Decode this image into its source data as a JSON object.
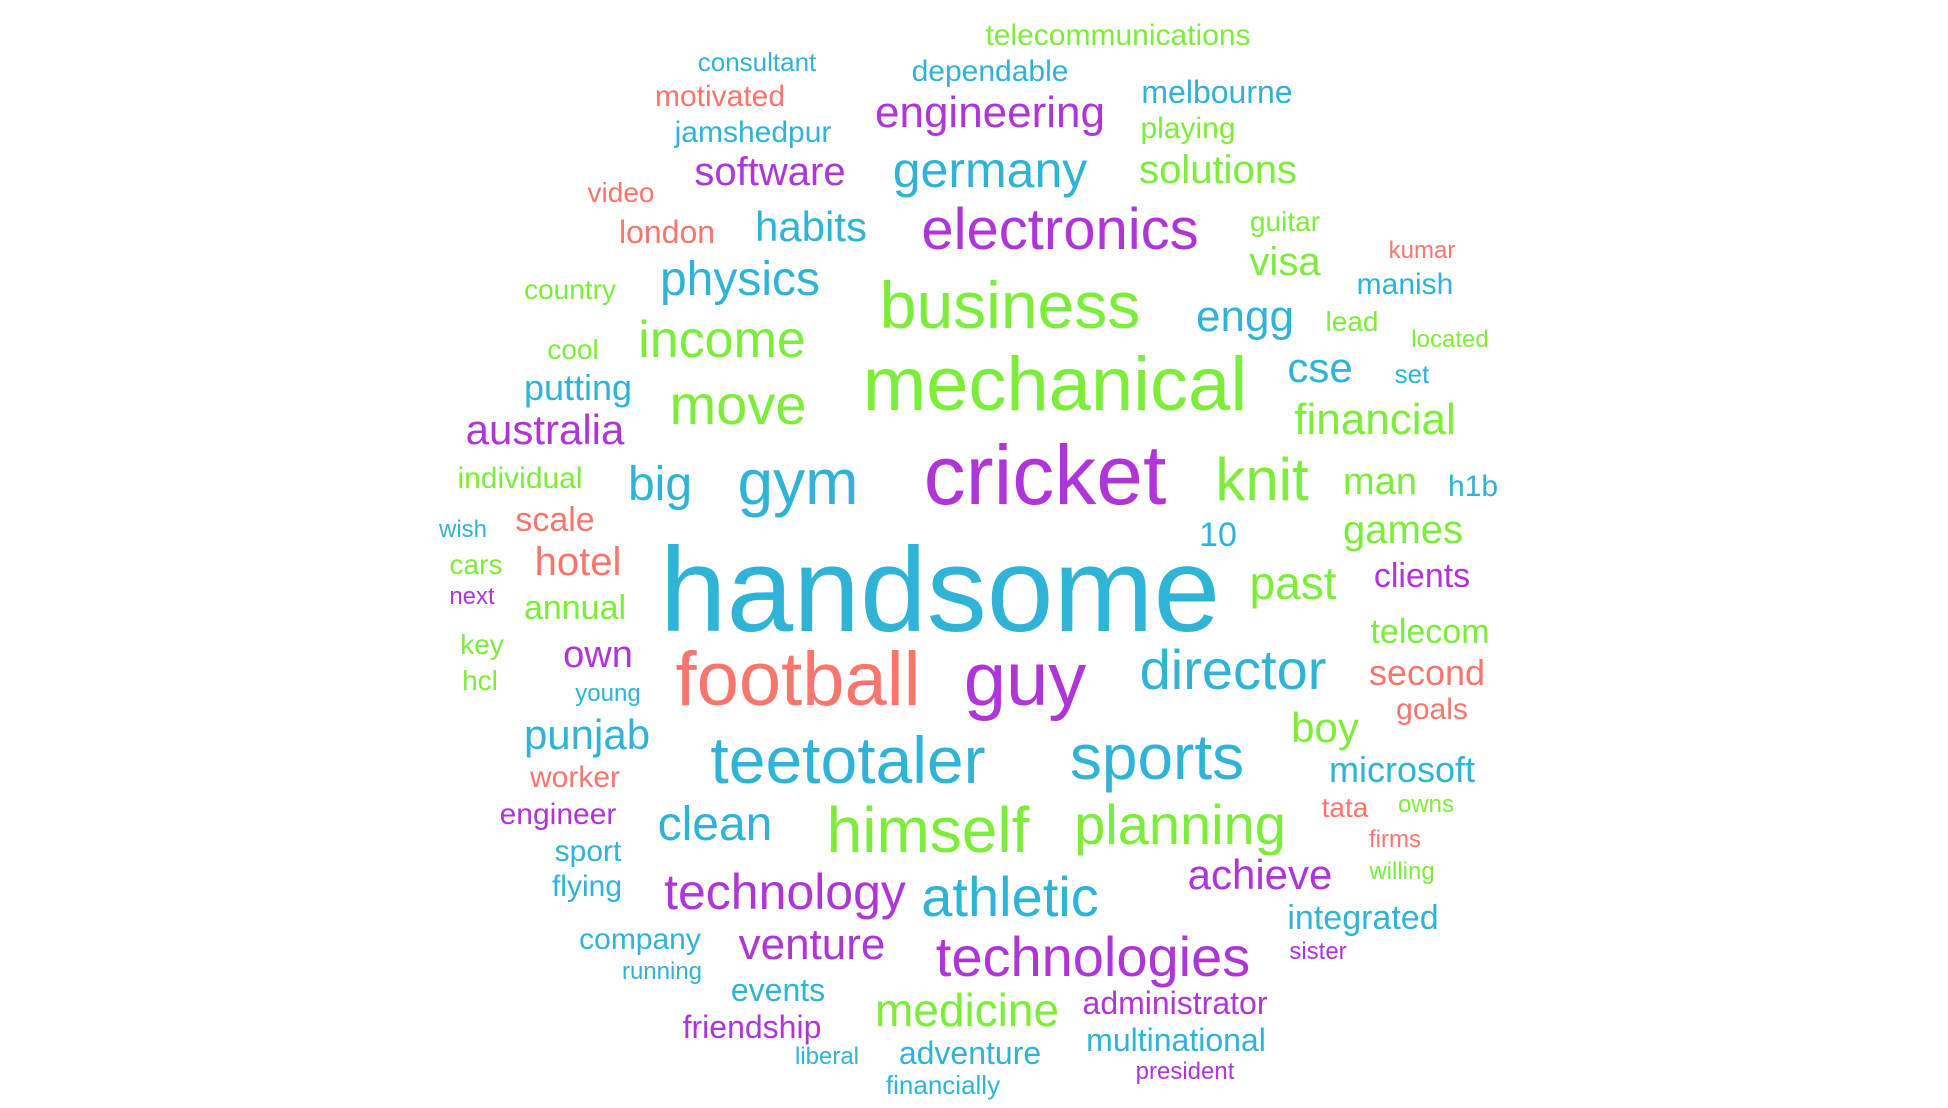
{
  "palette": {
    "red": "#f8766d",
    "green": "#7cee3a",
    "blue": "#2fb3d6",
    "purple": "#b035d8"
  },
  "words": [
    {
      "text": "handsome",
      "color": "blue"
    },
    {
      "text": "cricket",
      "color": "purple"
    },
    {
      "text": "football",
      "color": "red"
    },
    {
      "text": "guy",
      "color": "purple"
    },
    {
      "text": "mechanical",
      "color": "green"
    },
    {
      "text": "business",
      "color": "green"
    },
    {
      "text": "teetotaler",
      "color": "blue"
    },
    {
      "text": "himself",
      "color": "green"
    },
    {
      "text": "sports",
      "color": "blue"
    },
    {
      "text": "gym",
      "color": "blue"
    },
    {
      "text": "director",
      "color": "blue"
    },
    {
      "text": "electronics",
      "color": "purple"
    },
    {
      "text": "planning",
      "color": "green"
    },
    {
      "text": "technologies",
      "color": "purple"
    },
    {
      "text": "athletic",
      "color": "blue"
    },
    {
      "text": "technology",
      "color": "purple"
    },
    {
      "text": "knit",
      "color": "green"
    },
    {
      "text": "move",
      "color": "green"
    },
    {
      "text": "income",
      "color": "green"
    },
    {
      "text": "germany",
      "color": "blue"
    },
    {
      "text": "clean",
      "color": "blue"
    },
    {
      "text": "physics",
      "color": "blue"
    },
    {
      "text": "medicine",
      "color": "green"
    },
    {
      "text": "venture",
      "color": "purple"
    },
    {
      "text": "achieve",
      "color": "purple"
    },
    {
      "text": "past",
      "color": "green"
    },
    {
      "text": "big",
      "color": "blue"
    },
    {
      "text": "financial",
      "color": "green"
    },
    {
      "text": "engineering",
      "color": "purple"
    },
    {
      "text": "software",
      "color": "purple"
    },
    {
      "text": "habits",
      "color": "blue"
    },
    {
      "text": "solutions",
      "color": "green"
    },
    {
      "text": "engg",
      "color": "blue"
    },
    {
      "text": "cse",
      "color": "blue"
    },
    {
      "text": "australia",
      "color": "purple"
    },
    {
      "text": "punjab",
      "color": "blue"
    },
    {
      "text": "hotel",
      "color": "red"
    },
    {
      "text": "boy",
      "color": "green"
    },
    {
      "text": "games",
      "color": "green"
    },
    {
      "text": "man",
      "color": "green"
    },
    {
      "text": "own",
      "color": "purple"
    },
    {
      "text": "putting",
      "color": "blue"
    },
    {
      "text": "visa",
      "color": "green"
    },
    {
      "text": "microsoft",
      "color": "blue"
    },
    {
      "text": "second",
      "color": "red"
    },
    {
      "text": "telecom",
      "color": "green"
    },
    {
      "text": "clients",
      "color": "purple"
    },
    {
      "text": "integrated",
      "color": "blue"
    },
    {
      "text": "adventure",
      "color": "blue"
    },
    {
      "text": "administrator",
      "color": "purple"
    },
    {
      "text": "multinational",
      "color": "blue"
    },
    {
      "text": "friendship",
      "color": "purple"
    },
    {
      "text": "events",
      "color": "blue"
    },
    {
      "text": "company",
      "color": "blue"
    },
    {
      "text": "melbourne",
      "color": "blue"
    },
    {
      "text": "dependable",
      "color": "blue"
    },
    {
      "text": "telecommunications",
      "color": "green"
    },
    {
      "text": "jamshedpur",
      "color": "blue"
    },
    {
      "text": "motivated",
      "color": "red"
    },
    {
      "text": "playing",
      "color": "green"
    },
    {
      "text": "london",
      "color": "red"
    },
    {
      "text": "individual",
      "color": "green"
    },
    {
      "text": "scale",
      "color": "red"
    },
    {
      "text": "annual",
      "color": "green"
    },
    {
      "text": "goals",
      "color": "red"
    },
    {
      "text": "manish",
      "color": "blue"
    },
    {
      "text": "10",
      "color": "blue"
    },
    {
      "text": "engineer",
      "color": "purple"
    },
    {
      "text": "worker",
      "color": "red"
    },
    {
      "text": "sport",
      "color": "blue"
    },
    {
      "text": "flying",
      "color": "blue"
    },
    {
      "text": "country",
      "color": "green"
    },
    {
      "text": "guitar",
      "color": "green"
    },
    {
      "text": "lead",
      "color": "green"
    },
    {
      "text": "set",
      "color": "blue"
    },
    {
      "text": "h1b",
      "color": "blue"
    },
    {
      "text": "cool",
      "color": "green"
    },
    {
      "text": "cars",
      "color": "green"
    },
    {
      "text": "key",
      "color": "green"
    },
    {
      "text": "hcl",
      "color": "green"
    },
    {
      "text": "tata",
      "color": "red"
    },
    {
      "text": "consultant",
      "color": "blue"
    },
    {
      "text": "video",
      "color": "red"
    },
    {
      "text": "kumar",
      "color": "red"
    },
    {
      "text": "located",
      "color": "green"
    },
    {
      "text": "wish",
      "color": "blue"
    },
    {
      "text": "next",
      "color": "purple"
    },
    {
      "text": "young",
      "color": "blue"
    },
    {
      "text": "owns",
      "color": "green"
    },
    {
      "text": "firms",
      "color": "red"
    },
    {
      "text": "willing",
      "color": "green"
    },
    {
      "text": "sister",
      "color": "purple"
    },
    {
      "text": "running",
      "color": "blue"
    },
    {
      "text": "liberal",
      "color": "blue"
    },
    {
      "text": "financially",
      "color": "blue"
    },
    {
      "text": "president",
      "color": "purple"
    }
  ]
}
